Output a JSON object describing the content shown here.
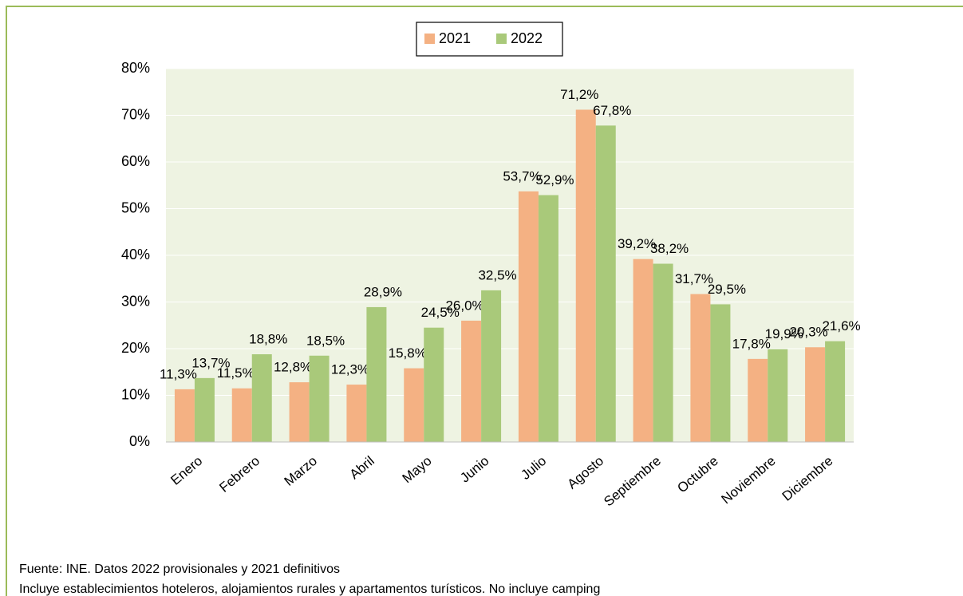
{
  "chart_data": {
    "type": "bar",
    "categories": [
      "Enero",
      "Febrero",
      "Marzo",
      "Abril",
      "Mayo",
      "Junio",
      "Julio",
      "Agosto",
      "Septiembre",
      "Octubre",
      "Noviembre",
      "Diciembre"
    ],
    "series": [
      {
        "name": "2021",
        "color": "#f4b183",
        "values": [
          11.3,
          11.5,
          12.8,
          12.3,
          15.8,
          26.0,
          53.7,
          71.2,
          39.2,
          31.7,
          17.8,
          20.3
        ],
        "value_labels": [
          "11,3%",
          "11,5%",
          "12,8%",
          "12,3%",
          "15,8%",
          "26,0%",
          "53,7%",
          "71,2%",
          "39,2%",
          "31,7%",
          "17,8%",
          "20,3%"
        ]
      },
      {
        "name": "2022",
        "color": "#a9c97a",
        "values": [
          13.7,
          18.8,
          18.5,
          28.9,
          24.5,
          32.5,
          52.9,
          67.8,
          38.2,
          29.5,
          19.9,
          21.6
        ],
        "value_labels": [
          "13,7%",
          "18,8%",
          "18,5%",
          "28,9%",
          "24,5%",
          "32,5%",
          "52,9%",
          "67,8%",
          "38,2%",
          "29,5%",
          "19,9%",
          "21,6%"
        ]
      }
    ],
    "ylim": [
      0,
      80
    ],
    "yticks": [
      {
        "value": 0,
        "label": "0%"
      },
      {
        "value": 10,
        "label": "10%"
      },
      {
        "value": 20,
        "label": "20%"
      },
      {
        "value": 30,
        "label": "30%"
      },
      {
        "value": 40,
        "label": "40%"
      },
      {
        "value": 50,
        "label": "50%"
      },
      {
        "value": 60,
        "label": "60%"
      },
      {
        "value": 70,
        "label": "70%"
      },
      {
        "value": 80,
        "label": "80%"
      }
    ],
    "grid": true,
    "legend": "top",
    "notes": [
      "Fuente: INE. Datos 2022 provisionales y 2021 definitivos",
      "Incluye establecimientos hoteleros, alojamientos rurales y apartamentos turísticos. No incluye camping"
    ]
  }
}
